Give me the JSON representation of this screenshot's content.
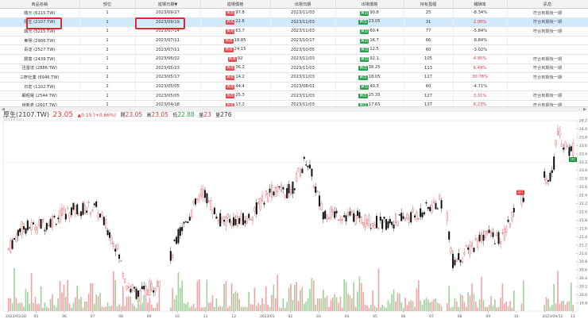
{
  "table": {
    "headers": [
      "商品名稱",
      "部位",
      "進場日期▼",
      "進場價格",
      "出場日期",
      "出場價格",
      "持有盈幅",
      "報酬率",
      "訊息"
    ],
    "rows": [
      {
        "name": "鼎元 (6215.TW)",
        "qty": "1",
        "entry_date": "2023/09/27",
        "entry_tag": "買進",
        "entry_price": "97.8",
        "exit_date": "2023/11/03",
        "exit_tag": "賣出",
        "exit_price": "90.8",
        "hold": "25",
        "ret": "-8.34%",
        "ret_pos": false,
        "msg": "符合到期後一期"
      },
      {
        "name": "厚生 (2107.TW)",
        "qty": "1",
        "entry_date": "2023/09/19",
        "entry_tag": "買進",
        "entry_price": "22.6",
        "exit_date": "2023/11/03",
        "exit_tag": "賣出",
        "exit_price": "23.05",
        "hold": "31",
        "ret": "2.00%",
        "ret_pos": true,
        "msg": "符合到期後一期"
      },
      {
        "name": "鼎元 (5215.TW)",
        "qty": "1",
        "entry_date": "2023/07/14",
        "entry_tag": "買進",
        "entry_price": "63.7",
        "exit_date": "2023/11/03",
        "exit_tag": "賣出",
        "exit_price": "60.4",
        "hold": "77",
        "ret": "-5.84%",
        "ret_pos": false,
        "msg": "符合到期後一期"
      },
      {
        "name": "東明 (2906.TW)",
        "qty": "1",
        "entry_date": "2023/07/11",
        "entry_tag": "買進",
        "entry_price": "18.85",
        "exit_date": "2023/10/17",
        "exit_tag": "賣出",
        "exit_price": "16.7",
        "hold": "66",
        "ret": "-8.84%",
        "ret_pos": false,
        "msg": ""
      },
      {
        "name": "百達 (2527.TW)",
        "qty": "2",
        "entry_date": "2023/07/11",
        "entry_tag": "買進",
        "entry_price": "24.15",
        "exit_date": "2023/10/05",
        "exit_tag": "賣出",
        "exit_price": "12.5",
        "hold": "60",
        "ret": "-3.02%",
        "ret_pos": false,
        "msg": ""
      },
      {
        "name": "興富 (2439.TW)",
        "qty": "1",
        "entry_date": "2023/06/02",
        "entry_tag": "買進",
        "entry_price": "92",
        "exit_date": "2023/11/03",
        "exit_tag": "賣出",
        "exit_price": "92.1",
        "hold": "105",
        "ret": "4.95%",
        "ret_pos": true,
        "msg": "符合到期後一期"
      },
      {
        "name": "迅雷達 (2886.TW)",
        "qty": "1",
        "entry_date": "2023/05/23",
        "entry_tag": "買進",
        "entry_price": "36.2",
        "exit_date": "2023/11/03",
        "exit_tag": "賣出",
        "exit_price": "38.25",
        "hold": "113",
        "ret": "6.49%",
        "ret_pos": true,
        "msg": "符合到期後一期"
      },
      {
        "name": "三軒社業 (6946.TW)",
        "qty": "2",
        "entry_date": "2023/05/17",
        "entry_tag": "買進",
        "entry_price": "14.2",
        "exit_date": "2023/11/03",
        "exit_tag": "賣出",
        "exit_price": "18.05",
        "hold": "117",
        "ret": "30.78%",
        "ret_pos": true,
        "msg": "符合到期後一期"
      },
      {
        "name": "日宏 (1102.TW)",
        "qty": "2",
        "entry_date": "2023/05/05",
        "entry_tag": "買進",
        "entry_price": "44.4",
        "exit_date": "2023/08/01",
        "exit_tag": "賣出",
        "exit_price": "40.3",
        "hold": "60",
        "ret": "-4.71%",
        "ret_pos": false,
        "msg": ""
      },
      {
        "name": "顯昭電 (2544.TW)",
        "qty": "1",
        "entry_date": "2023/05/05",
        "entry_tag": "買進",
        "entry_price": "25.3",
        "exit_date": "2023/11/03",
        "exit_tag": "賣出",
        "exit_price": "25.35",
        "hold": "127",
        "ret": "3.31%",
        "ret_pos": true,
        "msg": "符合到期後一期"
      },
      {
        "name": "世新倉 (2607.TW)",
        "qty": "1",
        "entry_date": "2023/04/18",
        "entry_tag": "買進",
        "entry_price": "17.2",
        "exit_date": "2023/11/03",
        "exit_tag": "賣出",
        "exit_price": "17.65",
        "hold": "137",
        "ret": "6.23%",
        "ret_pos": true,
        "msg": "符合到期後一期"
      }
    ]
  },
  "quote": {
    "symbol": "厚生(2107.TW)",
    "price": "23.05",
    "change": "▲0.15 (+0.66%)",
    "o_label": "開",
    "open": "23.05",
    "h_label": "高",
    "high": "23.05",
    "l_label": "低",
    "low": "22.88",
    "c_label": "量",
    "close": "23",
    "vol_label": "量",
    "volume": "276",
    "date": "2023/11/03"
  },
  "chart_data": {
    "type": "candlestick",
    "ylim": [
      19.8,
      24.2
    ],
    "yticks": [
      "24.2",
      "24.0",
      "23.8",
      "23.6",
      "23.4",
      "23.2",
      "23.0",
      "22.8",
      "22.6",
      "22.4",
      "22.2",
      "22.0",
      "21.8",
      "21.6",
      "21.4",
      "21.2",
      "21.0",
      "20.8",
      "20.6",
      "20.4",
      "20.2",
      "20.0",
      "19.8"
    ],
    "xticks": [
      "2022/03/28",
      "05",
      "06",
      "07",
      "08",
      "09",
      "10",
      "11",
      "12",
      "2023/01",
      "02",
      "03",
      "04",
      "05",
      "06",
      "07",
      "08",
      "09",
      "10",
      "2023/09/12",
      "11"
    ],
    "markers": [
      {
        "label": "B01",
        "type": "buy",
        "price": 22.6
      },
      {
        "label": "S01",
        "type": "sell",
        "price": 23.05
      }
    ],
    "colors": {
      "up": "#e0484f",
      "down": "#111111",
      "vol_up": "#f2a1a4",
      "vol_down": "#9fcf9a"
    }
  },
  "scrollbar": {
    "left_arrow": "◀",
    "right_arrow": "▶"
  }
}
